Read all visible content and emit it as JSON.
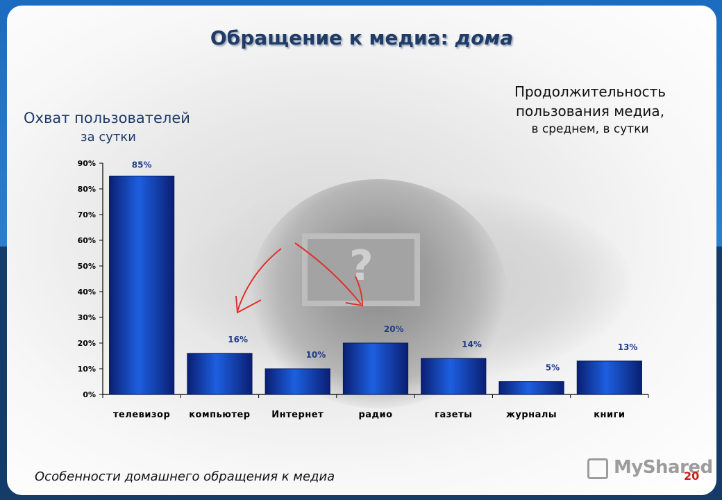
{
  "slide": {
    "title_part1": "Обращение к медиа: ",
    "title_part2": "дома",
    "left_heading_line1": "Охват пользователей",
    "left_heading_line2": "за сутки",
    "right_heading_line1": "Продолжительность",
    "right_heading_line2": "пользования медиа,",
    "right_heading_line3": "в среднем, в сутки",
    "footer": "Особенности домашнего обращения к медиа",
    "watermark": "MyShared",
    "page_number": "20"
  },
  "colors": {
    "bar_dark": "#0a1f73",
    "bar_light": "#1d5fe0",
    "label_color": "#1f3b8a",
    "page_number": "#d0201c",
    "arrow": "#e0302a"
  },
  "chart_data": {
    "type": "bar",
    "title": "Охват пользователей",
    "xlabel": "",
    "ylabel": "",
    "ylim": [
      0,
      90
    ],
    "yticks": [
      "0%",
      "10%",
      "20%",
      "30%",
      "40%",
      "50%",
      "60%",
      "70%",
      "80%",
      "90%"
    ],
    "categories": [
      "телевизор",
      "компьютер",
      "Интернет",
      "радио",
      "газеты",
      "журналы",
      "книги"
    ],
    "values": [
      85,
      16,
      10,
      20,
      14,
      5,
      13
    ],
    "data_labels": [
      "85%",
      "16%",
      "10%",
      "20%",
      "14%",
      "5%",
      "13%"
    ],
    "grid": false,
    "legend": "none"
  }
}
